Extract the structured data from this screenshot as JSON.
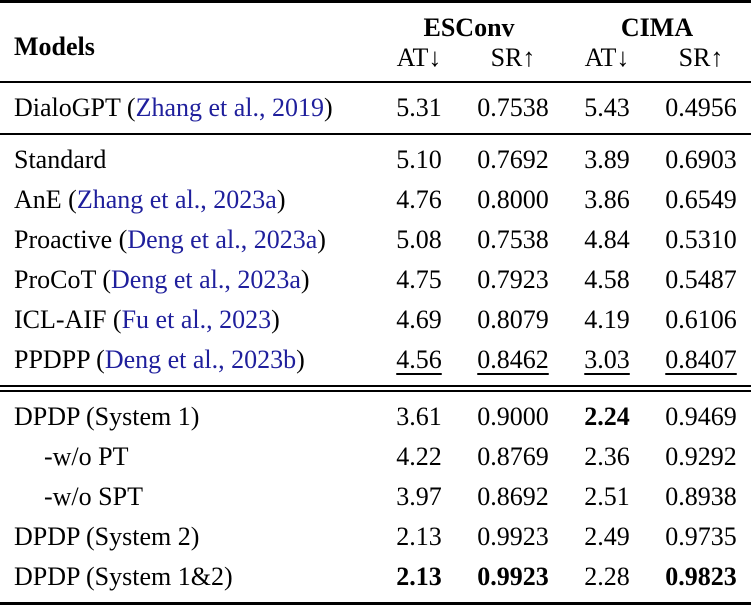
{
  "header": {
    "models_label": "Models",
    "groups": [
      {
        "label": "ESConv"
      },
      {
        "label": "CIMA"
      }
    ],
    "subheaders": [
      "AT↓",
      "SR↑",
      "AT↓",
      "SR↑"
    ]
  },
  "colors": {
    "citation_link": "#1f1f9c",
    "text": "#000000",
    "background": "#ffffff"
  },
  "rows": [
    {
      "pre": "DialoGPT (",
      "cite": "Zhang et al., 2019",
      "post": ")",
      "at1": "5.31",
      "sr1": "0.7538",
      "at2": "5.43",
      "sr2": "0.4956"
    },
    {
      "pre": "Standard",
      "cite": "",
      "post": "",
      "at1": "5.10",
      "sr1": "0.7692",
      "at2": "3.89",
      "sr2": "0.6903"
    },
    {
      "pre": "AnE (",
      "cite": "Zhang et al., 2023a",
      "post": ")",
      "at1": "4.76",
      "sr1": "0.8000",
      "at2": "3.86",
      "sr2": "0.6549"
    },
    {
      "pre": "Proactive (",
      "cite": "Deng et al., 2023a",
      "post": ")",
      "at1": "5.08",
      "sr1": "0.7538",
      "at2": "4.84",
      "sr2": "0.5310"
    },
    {
      "pre": "ProCoT (",
      "cite": "Deng et al., 2023a",
      "post": ")",
      "at1": "4.75",
      "sr1": "0.7923",
      "at2": "4.58",
      "sr2": "0.5487"
    },
    {
      "pre": "ICL-AIF (",
      "cite": "Fu et al., 2023",
      "post": ")",
      "at1": "4.69",
      "sr1": "0.8079",
      "at2": "4.19",
      "sr2": "0.6106"
    },
    {
      "pre": "PPDPP (",
      "cite": "Deng et al., 2023b",
      "post": ")",
      "at1": "4.56",
      "sr1": "0.8462",
      "at2": "3.03",
      "sr2": "0.8407"
    },
    {
      "pre": "DPDP (System 1)",
      "cite": "",
      "post": "",
      "at1": "3.61",
      "sr1": "0.9000",
      "at2": "2.24",
      "sr2": "0.9469"
    },
    {
      "pre": "-w/o PT",
      "cite": "",
      "post": "",
      "at1": "4.22",
      "sr1": "0.8769",
      "at2": "2.36",
      "sr2": "0.9292"
    },
    {
      "pre": "-w/o SPT",
      "cite": "",
      "post": "",
      "at1": "3.97",
      "sr1": "0.8692",
      "at2": "2.51",
      "sr2": "0.8938"
    },
    {
      "pre": "DPDP (System 2)",
      "cite": "",
      "post": "",
      "at1": "2.13",
      "sr1": "0.9923",
      "at2": "2.49",
      "sr2": "0.9735"
    },
    {
      "pre": "DPDP (System 1&2)",
      "cite": "",
      "post": "",
      "at1": "2.13",
      "sr1": "0.9923",
      "at2": "2.28",
      "sr2": "0.9823"
    }
  ]
}
